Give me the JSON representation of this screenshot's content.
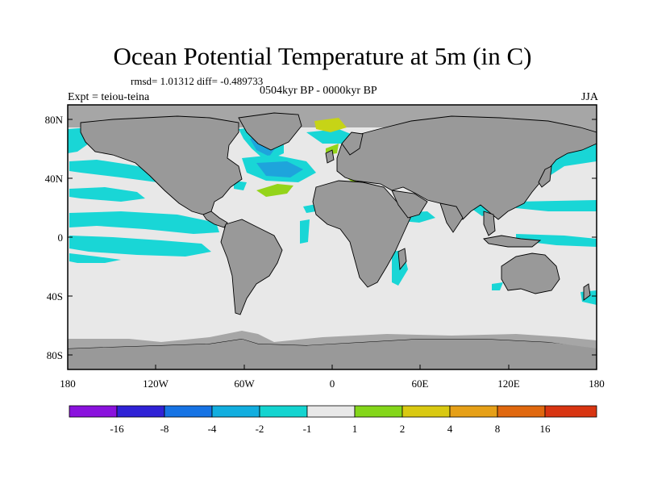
{
  "title": "Ocean Potential Temperature at 5m (in C)",
  "stats_line": "rmsd= 1.01312  diff= -0.489733",
  "period_line": "0504kyr BP - 0000kyr BP",
  "expt_line": "Expt = teiou-teina",
  "season": "JJA",
  "lat_labels": [
    "80N",
    "40N",
    "0",
    "40S",
    "80S"
  ],
  "lon_labels": [
    "180",
    "120W",
    "60W",
    "0",
    "60E",
    "120E",
    "180"
  ],
  "colorbar": {
    "labels": [
      "-16",
      "-8",
      "-4",
      "-2",
      "-1",
      "1",
      "2",
      "4",
      "8",
      "16"
    ],
    "colors": [
      "#8a12dd",
      "#2f22d6",
      "#1673e4",
      "#12aedf",
      "#14d4d0",
      "#e8e8e8",
      "#84d61a",
      "#d9c912",
      "#e6a018",
      "#e0680f",
      "#d83512"
    ]
  },
  "map_colors": {
    "land": "#999999",
    "ocean_neutral": "#e8e8e8",
    "cyan": "#19d6d6",
    "blue": "#1ea4dc",
    "green": "#94d41a",
    "yellow_green": "#c6d417",
    "ice_gray": "#a6a6a6"
  }
}
